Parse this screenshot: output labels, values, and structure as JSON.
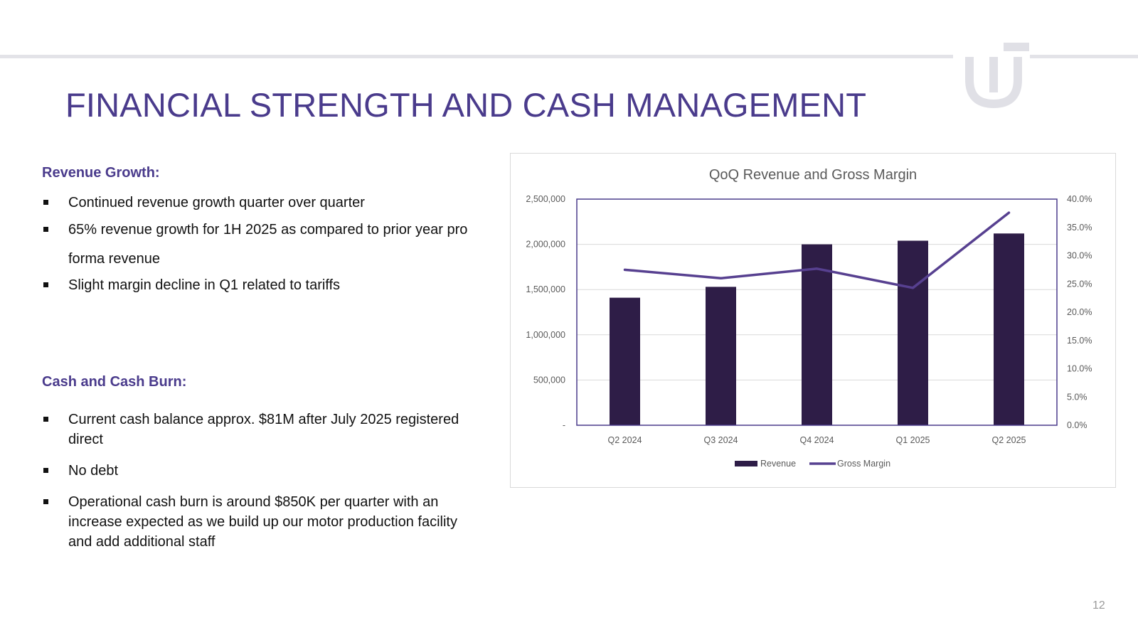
{
  "slide": {
    "title": "FINANCIAL STRENGTH AND CASH MANAGEMENT",
    "page_number": "12",
    "accent_color": "#4a3b8c",
    "logo_icon": "uw-logo-icon"
  },
  "revenue_growth": {
    "heading": "Revenue Growth:",
    "bullets": [
      "Continued revenue growth quarter over quarter",
      "65% revenue growth for 1H 2025 as compared to prior year pro forma revenue",
      "Slight margin decline in Q1 related to tariffs"
    ]
  },
  "cash_burn": {
    "heading": "Cash and Cash Burn:",
    "bullets": [
      "Current cash balance approx. $81M after July 2025 registered direct",
      "No debt",
      "Operational cash burn is around $850K per quarter with an increase expected as we build up our motor production facility and add additional staff"
    ]
  },
  "chart_data": {
    "type": "bar",
    "title": "QoQ Revenue and Gross Margin",
    "categories": [
      "Q2 2024",
      "Q3 2024",
      "Q4 2024",
      "Q1 2025",
      "Q2 2025"
    ],
    "series": [
      {
        "name": "Revenue",
        "type": "bar",
        "axis": "left",
        "color": "#2e1d47",
        "values": [
          1410000,
          1530000,
          2000000,
          2040000,
          2120000
        ]
      },
      {
        "name": "Gross Margin",
        "type": "line",
        "axis": "right",
        "color": "#574090",
        "values": [
          27.5,
          26.0,
          27.7,
          24.3,
          37.6
        ]
      }
    ],
    "y_left": {
      "range": [
        0,
        2500000
      ],
      "ticks": [
        0,
        500000,
        1000000,
        1500000,
        2000000,
        2500000
      ],
      "tick_labels": [
        "-",
        "500,000",
        "1,000,000",
        "1,500,000",
        "2,000,000",
        "2,500,000"
      ]
    },
    "y_right": {
      "range": [
        0,
        40
      ],
      "ticks": [
        0,
        5,
        10,
        15,
        20,
        25,
        30,
        35,
        40
      ],
      "tick_labels": [
        "0.0%",
        "5.0%",
        "10.0%",
        "15.0%",
        "20.0%",
        "25.0%",
        "30.0%",
        "35.0%",
        "40.0%"
      ]
    },
    "grid": true,
    "legend": "bottom",
    "frame_color": "#4a3b8c",
    "grid_color": "#d9d9d9"
  }
}
